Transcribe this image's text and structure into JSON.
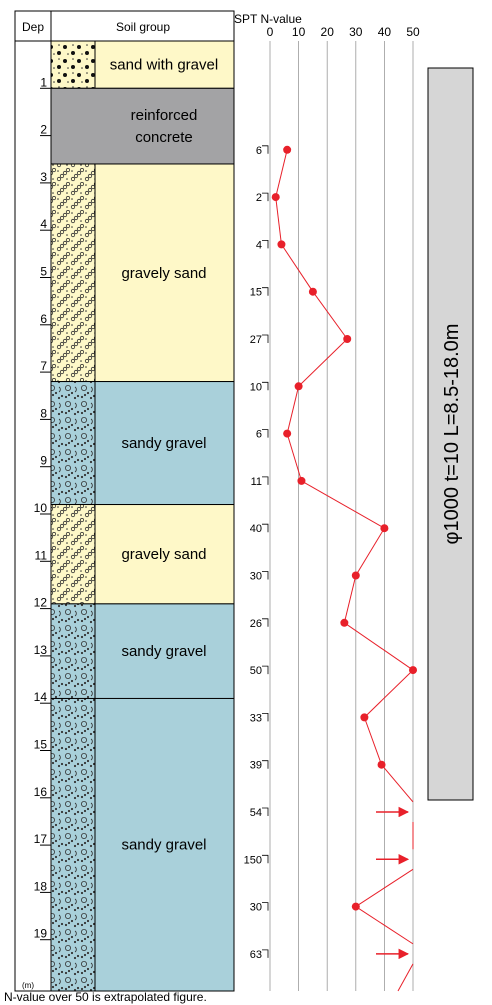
{
  "header": {
    "depth_label": "Dep",
    "soil_label": "Soil group",
    "spt_label": "SPT N-value",
    "spt_ticks": [
      "0",
      "10",
      "20",
      "30",
      "40",
      "50"
    ]
  },
  "depth_unit": "(m)",
  "depth_marks": [
    "1",
    "2",
    "3",
    "4",
    "5",
    "6",
    "7",
    "8",
    "9",
    "10",
    "11",
    "12",
    "13",
    "14",
    "15",
    "16",
    "17",
    "18",
    "19"
  ],
  "layers": [
    {
      "name": "sand with gravel",
      "top": 0.0,
      "bottom": 1.0,
      "pattern": "sand-with-gravel",
      "color": "#fef8c8"
    },
    {
      "name": "reinforced concrete",
      "top": 1.0,
      "bottom": 2.6,
      "pattern": "concrete",
      "color": "#a3a3a5"
    },
    {
      "name": "gravely sand",
      "top": 2.6,
      "bottom": 7.2,
      "pattern": "gravely-sand",
      "color": "#fef8c8"
    },
    {
      "name": "sandy gravel",
      "top": 7.2,
      "bottom": 9.8,
      "pattern": "sandy-gravel",
      "color": "#a9d0da"
    },
    {
      "name": "gravely sand",
      "top": 9.8,
      "bottom": 11.9,
      "pattern": "gravely-sand",
      "color": "#fef8c8"
    },
    {
      "name": "sandy gravel",
      "top": 11.9,
      "bottom": 13.9,
      "pattern": "sandy-gravel",
      "color": "#a9d0da"
    },
    {
      "name": "sandy gravel",
      "top": 13.9,
      "bottom": 20.5,
      "pattern": "sandy-gravel",
      "color": "#a9d0da"
    }
  ],
  "chart_data": {
    "type": "line",
    "xlabel": "SPT N-value",
    "xlim": [
      0,
      50
    ],
    "ylim": [
      0,
      20.5
    ],
    "grid": true,
    "points": [
      {
        "depth": 2.3,
        "label": "6",
        "n": 6
      },
      {
        "depth": 3.3,
        "label": "2",
        "n": 2
      },
      {
        "depth": 4.3,
        "label": "4",
        "n": 4
      },
      {
        "depth": 5.3,
        "label": "15",
        "n": 15
      },
      {
        "depth": 6.3,
        "label": "27",
        "n": 27
      },
      {
        "depth": 7.3,
        "label": "10",
        "n": 10
      },
      {
        "depth": 8.3,
        "label": "6",
        "n": 6
      },
      {
        "depth": 9.3,
        "label": "11",
        "n": 11
      },
      {
        "depth": 10.3,
        "label": "40",
        "n": 40
      },
      {
        "depth": 11.3,
        "label": "30",
        "n": 30
      },
      {
        "depth": 12.3,
        "label": "26",
        "n": 26
      },
      {
        "depth": 13.3,
        "label": "50",
        "n": 50
      },
      {
        "depth": 14.3,
        "label": "33",
        "n": 33
      },
      {
        "depth": 15.3,
        "label": "39",
        "n": 39
      },
      {
        "depth": 16.3,
        "label": "54",
        "extrapolated": true
      },
      {
        "depth": 17.3,
        "label": "150",
        "extrapolated": true
      },
      {
        "depth": 18.3,
        "label": "30",
        "n": 30
      },
      {
        "depth": 19.3,
        "label": "63",
        "extrapolated": true
      }
    ],
    "line_color": "#e8202a"
  },
  "pile_label": "φ1000 t=10 L=8.5-18.0m",
  "footnote": "N-value over 50 is extrapolated figure."
}
